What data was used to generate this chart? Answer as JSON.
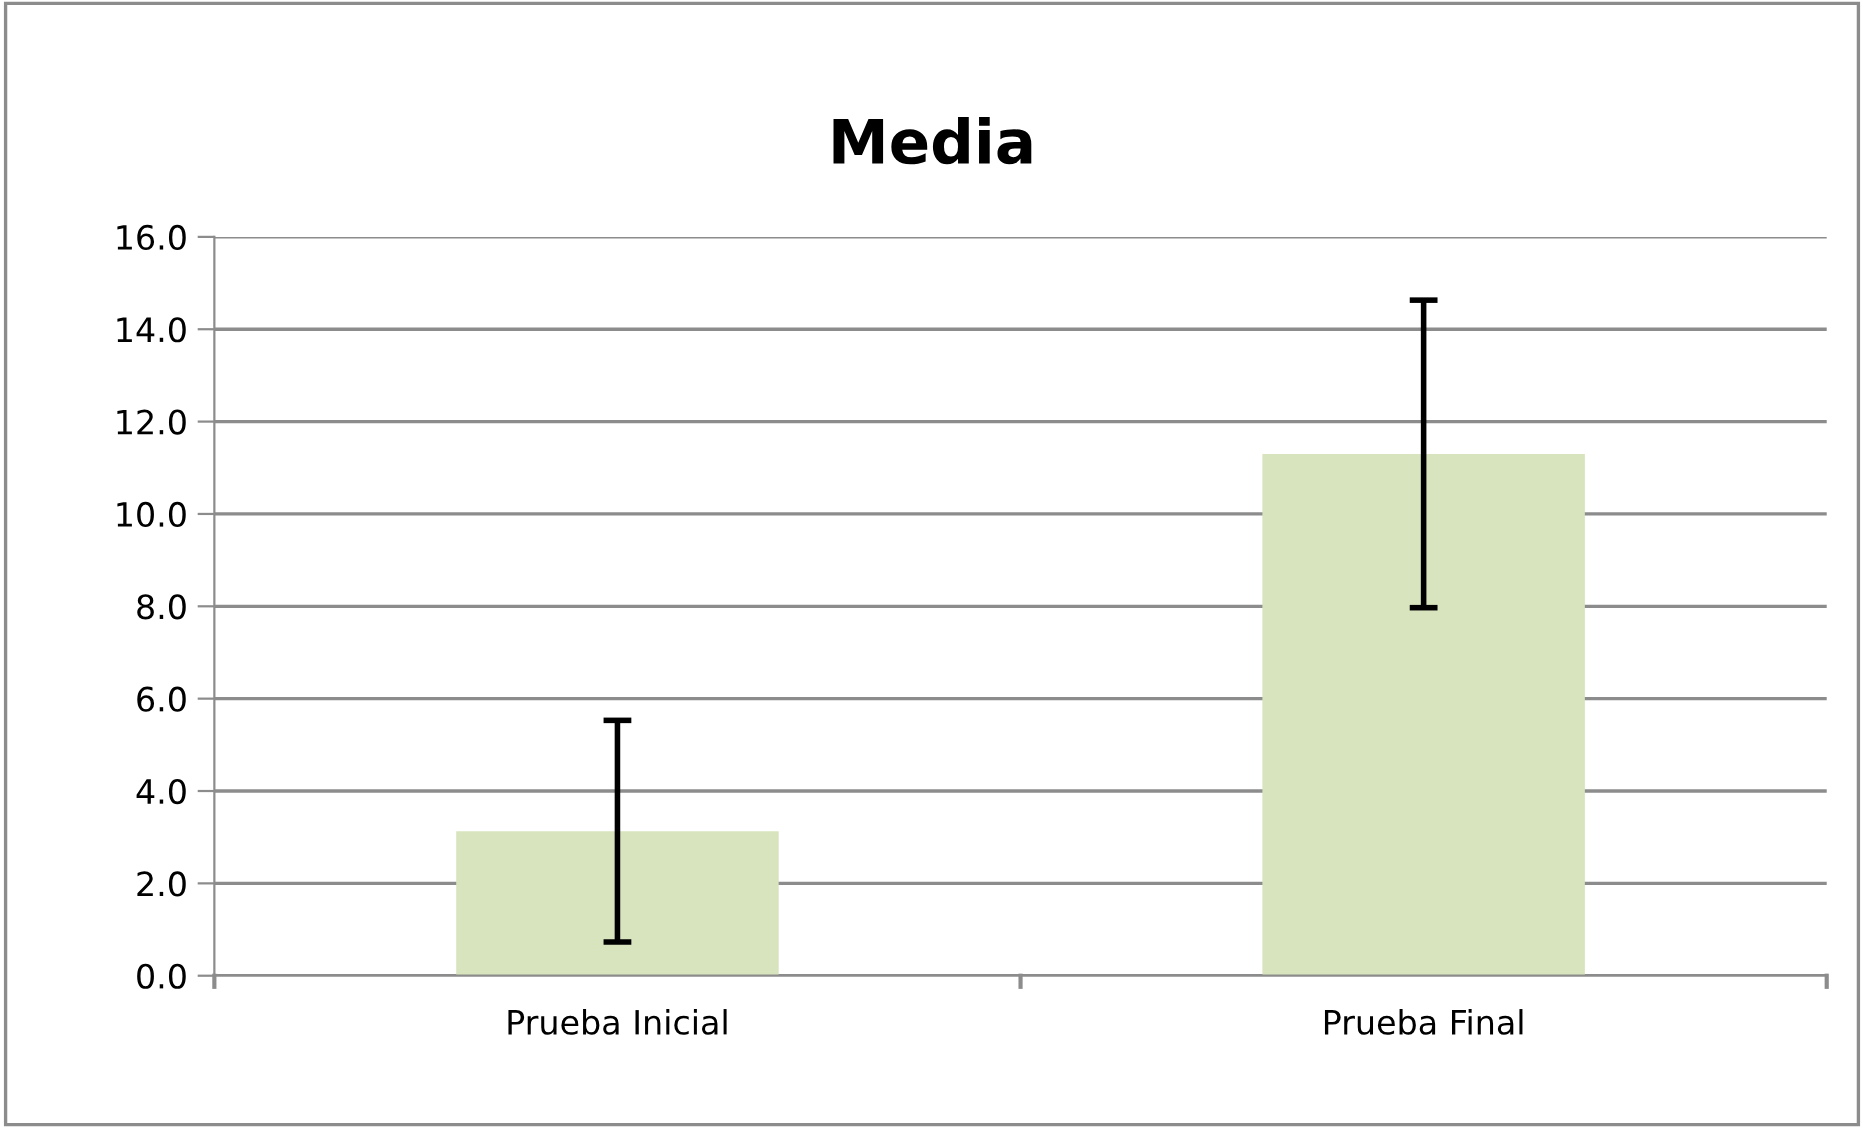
{
  "chart_data": {
    "type": "bar",
    "title": "Media",
    "categories": [
      "Prueba Inicial",
      "Prueba Final"
    ],
    "values": [
      3.13,
      11.3
    ],
    "color": "#d7e4bd",
    "errors": [
      2.4,
      3.33
    ],
    "ylim": [
      0,
      16
    ],
    "yticks": [
      {
        "value": 0,
        "label": "0.0"
      },
      {
        "value": 2,
        "label": "2.0"
      },
      {
        "value": 4,
        "label": "4.0"
      },
      {
        "value": 6,
        "label": "6.0"
      },
      {
        "value": 8,
        "label": "8.0"
      },
      {
        "value": 10,
        "label": "10.0"
      },
      {
        "value": 12,
        "label": "12.0"
      },
      {
        "value": 14,
        "label": "14.0"
      },
      {
        "value": 16,
        "label": "16.0"
      }
    ],
    "grid": "y",
    "legend": false
  }
}
